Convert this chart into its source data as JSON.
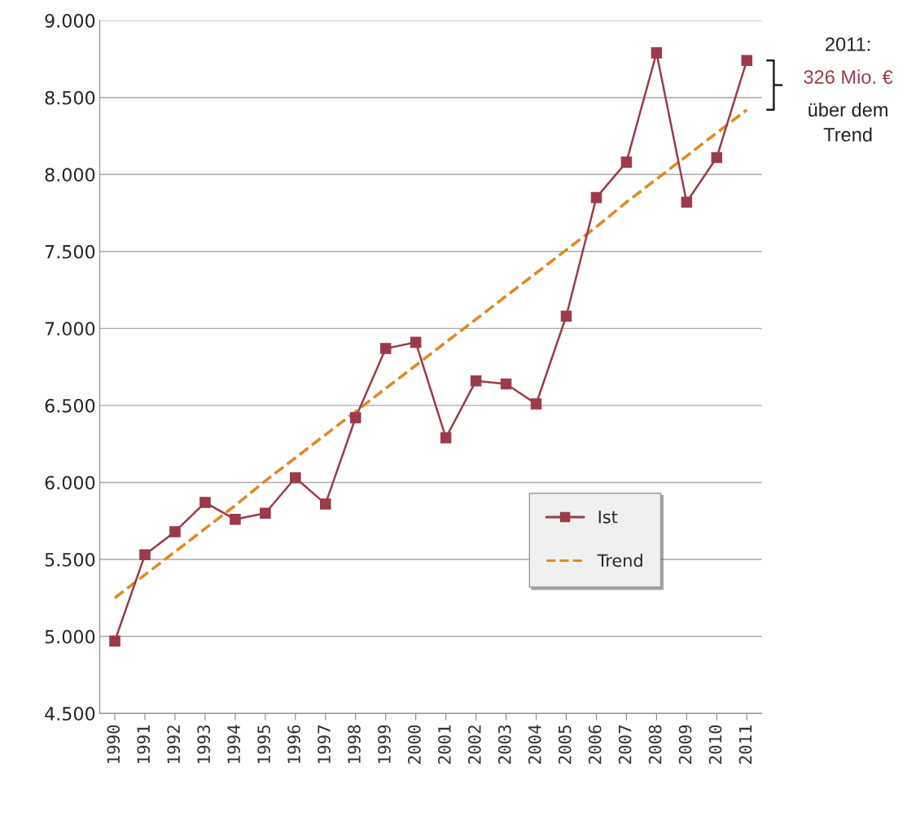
{
  "chart_data": {
    "type": "line",
    "categories": [
      "1990",
      "1991",
      "1992",
      "1993",
      "1994",
      "1995",
      "1996",
      "1997",
      "1998",
      "1999",
      "2000",
      "2001",
      "2002",
      "2003",
      "2004",
      "2005",
      "2006",
      "2007",
      "2008",
      "2009",
      "2010",
      "2011"
    ],
    "series": [
      {
        "name": "Ist",
        "color": "#9b3b4a",
        "marker": "square",
        "line_style": "solid",
        "values": [
          4970,
          5530,
          5680,
          5870,
          5760,
          5800,
          6030,
          5860,
          6420,
          6870,
          6910,
          6290,
          6660,
          6640,
          6510,
          7080,
          7850,
          8080,
          8790,
          7820,
          8110,
          8740
        ]
      },
      {
        "name": "Trend",
        "color": "#e08a1e",
        "marker": "none",
        "line_style": "dashed",
        "values": [
          5250,
          5400,
          5550,
          5700,
          5850,
          6010,
          6160,
          6310,
          6460,
          6610,
          6760,
          6910,
          7060,
          7210,
          7360,
          7510,
          7660,
          7820,
          7970,
          8120,
          8270,
          8420
        ]
      }
    ],
    "ylim": [
      4500,
      9000
    ],
    "yticks": [
      {
        "value": 4500,
        "label": "4.500"
      },
      {
        "value": 5000,
        "label": "5.000"
      },
      {
        "value": 5500,
        "label": "5.500"
      },
      {
        "value": 6000,
        "label": "6.000"
      },
      {
        "value": 6500,
        "label": "6.500"
      },
      {
        "value": 7000,
        "label": "7.000"
      },
      {
        "value": 7500,
        "label": "7.500"
      },
      {
        "value": 8000,
        "label": "8.000"
      },
      {
        "value": 8500,
        "label": "8.500"
      },
      {
        "value": 9000,
        "label": "9.000"
      }
    ],
    "grid": "y",
    "legend": "lower right",
    "annotations": [
      "2011:",
      "326 Mio. €",
      "über dem\nTrend"
    ]
  }
}
